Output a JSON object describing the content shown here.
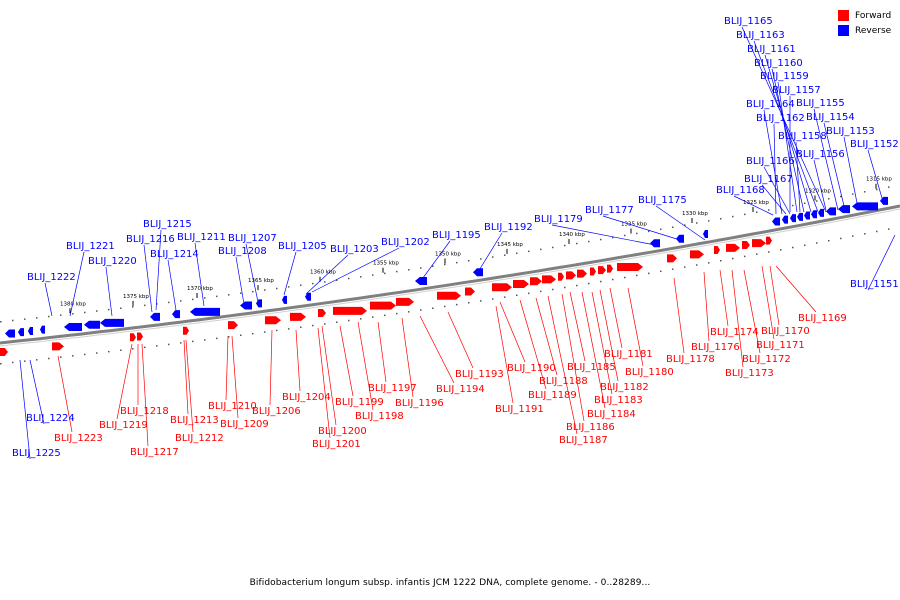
{
  "caption": "Bifidobacterium longum subsp. infantis JCM 1222 DNA, complete genome. - 0..28289...",
  "legend": {
    "forward_label": "Forward",
    "reverse_label": "Reverse",
    "forward_color": "#ff0000",
    "reverse_color": "#0000ff"
  },
  "colors": {
    "forward": "#ff0000",
    "reverse": "#0000ff",
    "backbone": "#808080"
  },
  "kbp_markers": [
    "1380 kbp",
    "1375 kbp",
    "1370 kbp",
    "1365 kbp",
    "1360 kbp",
    "1355 kbp",
    "1350 kbp",
    "1345 kbp",
    "1340 kbp",
    "1335 kbp",
    "1330 kbp",
    "1325 kbp",
    "1320 kbp",
    "1315 kbp"
  ],
  "reverse_genes": [
    "BLIJ_1165",
    "BLIJ_1163",
    "BLIJ_1161",
    "BLIJ_1160",
    "BLIJ_1159",
    "BLIJ_1157",
    "BLIJ_1164",
    "BLIJ_1155",
    "BLIJ_1162",
    "BLIJ_1154",
    "BLIJ_1158",
    "BLIJ_1153",
    "BLIJ_1156",
    "BLIJ_1152",
    "BLIJ_1166",
    "BLIJ_1167",
    "BLIJ_1168",
    "BLIJ_1175",
    "BLIJ_1177",
    "BLIJ_1179",
    "BLIJ_1192",
    "BLIJ_1195",
    "BLIJ_1202",
    "BLIJ_1203",
    "BLIJ_1205",
    "BLIJ_1207",
    "BLIJ_1208",
    "BLIJ_1211",
    "BLIJ_1214",
    "BLIJ_1215",
    "BLIJ_1216",
    "BLIJ_1221",
    "BLIJ_1220",
    "BLIJ_1222",
    "BLIJ_1224",
    "BLIJ_1225",
    "BLIJ_1151"
  ],
  "forward_genes": [
    "BLIJ_1169",
    "BLIJ_1170",
    "BLIJ_1171",
    "BLIJ_1172",
    "BLIJ_1173",
    "BLIJ_1174",
    "BLIJ_1176",
    "BLIJ_1178",
    "BLIJ_1180",
    "BLIJ_1181",
    "BLIJ_1182",
    "BLIJ_1183",
    "BLIJ_1184",
    "BLIJ_1185",
    "BLIJ_1186",
    "BLIJ_1187",
    "BLIJ_1188",
    "BLIJ_1189",
    "BLIJ_1190",
    "BLIJ_1191",
    "BLIJ_1193",
    "BLIJ_1194",
    "BLIJ_1196",
    "BLIJ_1197",
    "BLIJ_1198",
    "BLIJ_1199",
    "BLIJ_1200",
    "BLIJ_1201",
    "BLIJ_1204",
    "BLIJ_1206",
    "BLIJ_1209",
    "BLIJ_1210",
    "BLIJ_1212",
    "BLIJ_1213",
    "BLIJ_1217",
    "BLIJ_1218",
    "BLIJ_1219",
    "BLIJ_1223"
  ]
}
